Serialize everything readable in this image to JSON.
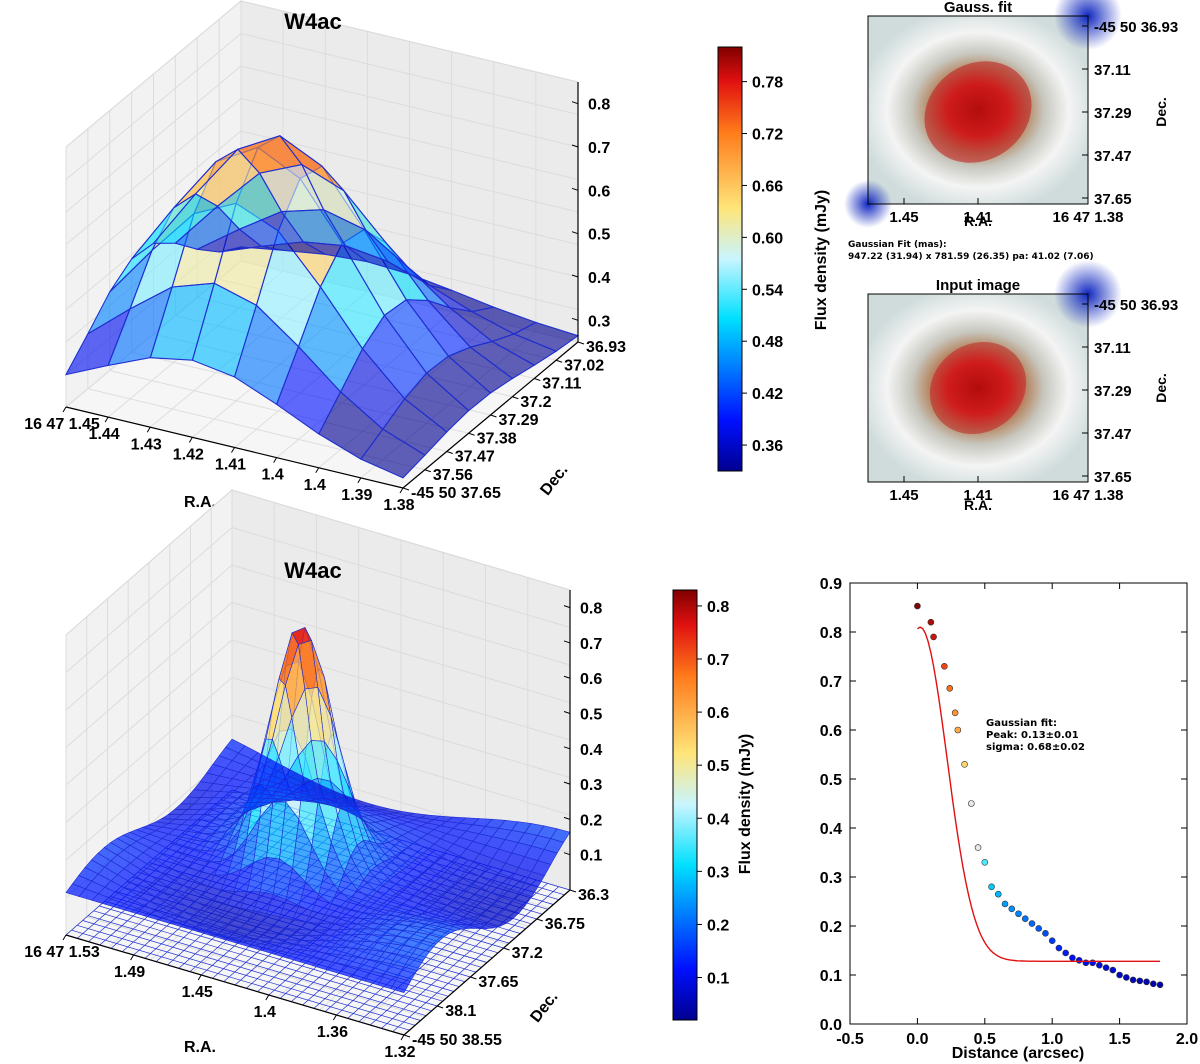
{
  "chart_data": [
    {
      "type": "surface3d",
      "id": "surf-top",
      "title": "W4ac",
      "xlabel": "R.A.",
      "ylabel": "Dec.",
      "x_ticks": [
        "16 47 1.45",
        "1.44",
        "1.43",
        "1.42",
        "1.41",
        "1.4",
        "1.4",
        "1.39",
        "1.38"
      ],
      "y_ticks": [
        "36.93",
        "37.02",
        "37.11",
        "37.2",
        "37.29",
        "37.38",
        "37.47",
        "37.56",
        "-45 50 37.65"
      ],
      "z_ticks": [
        "0.8",
        "0.7",
        "0.6",
        "0.5",
        "0.4",
        "0.3"
      ],
      "zlim": [
        0.25,
        0.85
      ],
      "grid_size": 9,
      "peak": 0.8,
      "base": 0.26,
      "sigma": 2.2,
      "colorbar": {
        "label": "Flux density (mJy)",
        "ticks": [
          "0.78",
          "0.72",
          "0.66",
          "0.60",
          "0.54",
          "0.48",
          "0.42",
          "0.36"
        ],
        "tick_values": [
          0.78,
          0.72,
          0.66,
          0.6,
          0.54,
          0.48,
          0.42,
          0.36
        ],
        "range": [
          0.33,
          0.82
        ]
      }
    },
    {
      "type": "heatmap",
      "id": "gauss-fit",
      "title": "Gauss. fit",
      "xlabel": "R.A.",
      "ylabel": "Dec.",
      "x_ticks": [
        "1.45",
        "1.41",
        "16 47 1.38"
      ],
      "y_ticks": [
        "-45 50 36.93",
        "37.11",
        "37.29",
        "37.47",
        "37.65"
      ]
    },
    {
      "type": "heatmap",
      "id": "input-image",
      "title": "Input image",
      "xlabel": "R.A.",
      "ylabel": "Dec.",
      "x_ticks": [
        "1.45",
        "1.41",
        "16 47 1.38"
      ],
      "y_ticks": [
        "-45 50 36.93",
        "37.11",
        "37.29",
        "37.47",
        "37.65"
      ]
    },
    {
      "type": "surface3d",
      "id": "surf-bottom",
      "title": "W4ac",
      "xlabel": "R.A.",
      "ylabel": "Dec.",
      "x_ticks": [
        "16 47 1.53",
        "1.49",
        "1.45",
        "1.4",
        "1.36",
        "1.32"
      ],
      "y_ticks": [
        "36.3",
        "36.75",
        "37.2",
        "37.65",
        "38.1",
        "-45 50 38.55"
      ],
      "z_ticks": [
        "0.8",
        "0.7",
        "0.6",
        "0.5",
        "0.4",
        "0.3",
        "0.2",
        "0.1"
      ],
      "zlim": [
        0.0,
        0.85
      ],
      "colorbar": {
        "label": "Flux density (mJy)",
        "ticks": [
          "0.8",
          "0.7",
          "0.6",
          "0.5",
          "0.4",
          "0.3",
          "0.2",
          "0.1"
        ],
        "tick_values": [
          0.8,
          0.7,
          0.6,
          0.5,
          0.4,
          0.3,
          0.2,
          0.1
        ],
        "range": [
          0.02,
          0.83
        ]
      }
    },
    {
      "type": "scatter",
      "id": "radial-profile",
      "title": "",
      "xlabel": "Distance (arcsec)",
      "ylabel": "",
      "xlim": [
        -0.5,
        2.0
      ],
      "ylim": [
        0.0,
        0.9
      ],
      "x_ticks": [
        -0.5,
        0.0,
        0.5,
        1.0,
        1.5,
        2.0
      ],
      "y_ticks": [
        0.0,
        0.1,
        0.2,
        0.3,
        0.4,
        0.5,
        0.6,
        0.7,
        0.8,
        0.9
      ],
      "x_tick_labels": [
        "-0.5",
        "0.0",
        "0.5",
        "1.0",
        "1.5",
        "2.0"
      ],
      "y_tick_labels": [
        "0.0",
        "0.1",
        "0.2",
        "0.3",
        "0.4",
        "0.5",
        "0.6",
        "0.7",
        "0.8",
        "0.9"
      ],
      "points": [
        [
          0.0,
          0.853
        ],
        [
          0.1,
          0.82
        ],
        [
          0.12,
          0.79
        ],
        [
          0.2,
          0.73
        ],
        [
          0.24,
          0.685
        ],
        [
          0.28,
          0.635
        ],
        [
          0.3,
          0.6
        ],
        [
          0.35,
          0.53
        ],
        [
          0.4,
          0.45
        ],
        [
          0.45,
          0.36
        ],
        [
          0.5,
          0.33
        ],
        [
          0.55,
          0.28
        ],
        [
          0.6,
          0.265
        ],
        [
          0.65,
          0.245
        ],
        [
          0.7,
          0.235
        ],
        [
          0.75,
          0.225
        ],
        [
          0.8,
          0.215
        ],
        [
          0.85,
          0.205
        ],
        [
          0.9,
          0.195
        ],
        [
          0.95,
          0.185
        ],
        [
          1.0,
          0.17
        ],
        [
          1.05,
          0.155
        ],
        [
          1.1,
          0.145
        ],
        [
          1.15,
          0.135
        ],
        [
          1.2,
          0.13
        ],
        [
          1.25,
          0.125
        ],
        [
          1.3,
          0.125
        ],
        [
          1.35,
          0.12
        ],
        [
          1.4,
          0.115
        ],
        [
          1.45,
          0.11
        ],
        [
          1.5,
          0.1
        ],
        [
          1.55,
          0.095
        ],
        [
          1.6,
          0.09
        ],
        [
          1.65,
          0.088
        ],
        [
          1.7,
          0.086
        ],
        [
          1.75,
          0.082
        ],
        [
          1.8,
          0.08
        ]
      ],
      "fit": {
        "name": "Gaussian fit",
        "peak": 0.13,
        "peak_err": 0.01,
        "sigma": 0.68,
        "sigma_err": 0.02,
        "curve_base": 0.128,
        "curve_top": 0.81,
        "curve_range": [
          0.0,
          1.8
        ]
      }
    }
  ],
  "annotations": {
    "gauss_fit_label": "Gaussian Fit (mas):",
    "gauss_fit_values": "947.22 (31.94) x 781.59 (26.35) pa: 41.02 (7.06)",
    "profile_fit_label": "Gaussian fit:",
    "profile_peak": "Peak: 0.13±0.01",
    "profile_sigma": "sigma: 0.68±0.02"
  },
  "colors": {
    "mesh": "#1f2fd0",
    "fit_line": "#e01010",
    "pane": "#f4f4f4"
  }
}
